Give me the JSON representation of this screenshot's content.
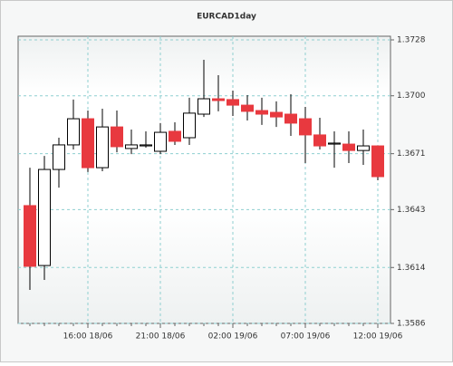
{
  "chart_data": {
    "type": "candlestick",
    "title": "EURCAD1day",
    "categories": [
      null,
      null,
      null,
      null,
      "16:00 18/06",
      null,
      null,
      null,
      null,
      "21:00 18/06",
      null,
      null,
      null,
      null,
      "02:00 19/06",
      null,
      null,
      null,
      null,
      "07:00 19/06",
      null,
      null,
      null,
      null,
      "12:00 19/06"
    ],
    "open": [
      1.3645,
      1.3615,
      1.36631,
      1.36754,
      1.36885,
      1.3664,
      1.36844,
      1.36736,
      1.36749,
      1.36722,
      1.36822,
      1.3679,
      1.36908,
      1.36985,
      1.36981,
      1.36953,
      1.36926,
      1.36917,
      1.36908,
      1.36885,
      1.36804,
      1.36758,
      1.36758,
      1.36726,
      1.36749
    ],
    "high": [
      1.3664,
      1.36699,
      1.3679,
      1.36981,
      1.36926,
      1.36935,
      1.36926,
      1.36831,
      1.36822,
      1.36863,
      1.36867,
      1.3699,
      1.3718,
      1.37103,
      1.37026,
      1.37003,
      1.3699,
      1.36972,
      1.37008,
      1.36944,
      1.3689,
      1.36822,
      1.36822,
      1.36831,
      1.36749
    ],
    "low": [
      1.36028,
      1.36078,
      1.3654,
      1.36731,
      1.36618,
      1.36622,
      1.36717,
      1.36708,
      1.3674,
      1.36708,
      1.36754,
      1.36754,
      1.36894,
      1.36922,
      1.36899,
      1.36876,
      1.36854,
      1.36844,
      1.36799,
      1.36663,
      1.36731,
      1.3664,
      1.36663,
      1.36654,
      1.36577
    ],
    "close": [
      1.36146,
      1.36631,
      1.36754,
      1.36885,
      1.3664,
      1.36844,
      1.36745,
      1.36754,
      1.36754,
      1.36817,
      1.36772,
      1.36913,
      1.36985,
      1.36976,
      1.36953,
      1.36922,
      1.36908,
      1.36894,
      1.36863,
      1.36804,
      1.36749,
      1.36763,
      1.36726,
      1.36749,
      1.36595
    ],
    "up_color": "#ffffff",
    "down_color": "#e8393f",
    "ylim": [
      1.3586,
      1.3728
    ],
    "yticks": [
      1.3586,
      1.3614,
      1.3643,
      1.3671,
      {
        "value": 1.37,
        "label": "1.3700"
      },
      1.3728
    ],
    "grid": true
  }
}
